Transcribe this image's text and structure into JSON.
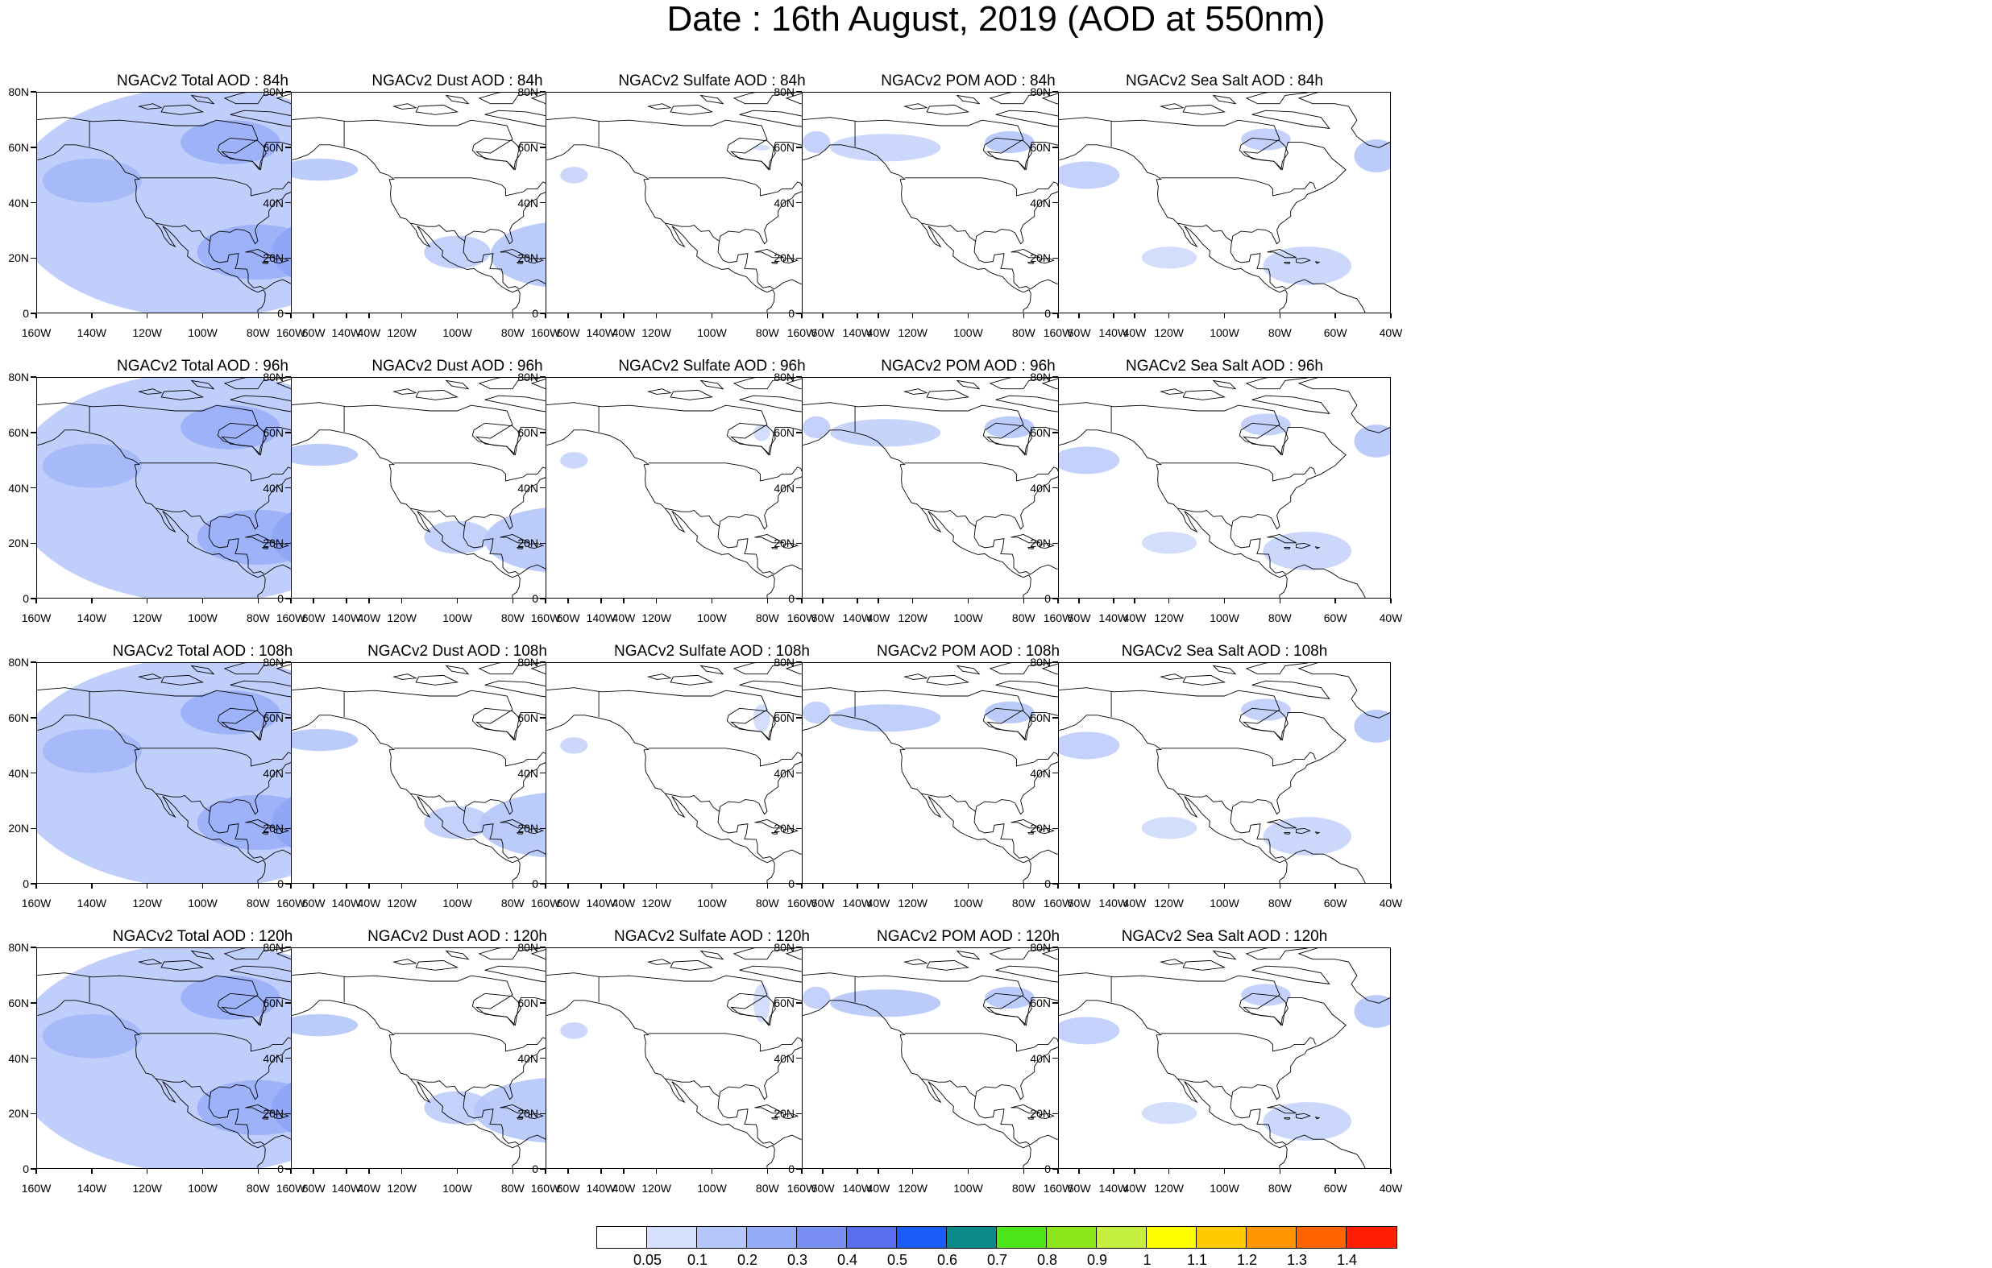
{
  "title": "Date : 16th August, 2019 (AOD at 550nm)",
  "y_tick_labels": [
    "80N",
    "60N",
    "40N",
    "20N",
    "0"
  ],
  "x_tick_labels": [
    "160W",
    "140W",
    "120W",
    "100W",
    "80W",
    "60W",
    "40W"
  ],
  "panels": [
    {
      "title": "NGACv2 Total AOD : 84h",
      "species": "total",
      "forecast_hour": 84
    },
    {
      "title": "NGACv2 Dust AOD : 84h",
      "species": "dust",
      "forecast_hour": 84
    },
    {
      "title": "NGACv2 Sulfate AOD : 84h",
      "species": "sulfate",
      "forecast_hour": 84
    },
    {
      "title": "NGACv2 POM AOD : 84h",
      "species": "pom",
      "forecast_hour": 84
    },
    {
      "title": "NGACv2 Sea Salt AOD : 84h",
      "species": "seasalt",
      "forecast_hour": 84
    },
    {
      "title": "NGACv2 Total AOD : 96h",
      "species": "total",
      "forecast_hour": 96
    },
    {
      "title": "NGACv2 Dust AOD : 96h",
      "species": "dust",
      "forecast_hour": 96
    },
    {
      "title": "NGACv2 Sulfate AOD : 96h",
      "species": "sulfate",
      "forecast_hour": 96
    },
    {
      "title": "NGACv2 POM AOD : 96h",
      "species": "pom",
      "forecast_hour": 96
    },
    {
      "title": "NGACv2 Sea Salt AOD : 96h",
      "species": "seasalt",
      "forecast_hour": 96
    },
    {
      "title": "NGACv2 Total AOD : 108h",
      "species": "total",
      "forecast_hour": 108
    },
    {
      "title": "NGACv2 Dust AOD : 108h",
      "species": "dust",
      "forecast_hour": 108
    },
    {
      "title": "NGACv2 Sulfate AOD : 108h",
      "species": "sulfate",
      "forecast_hour": 108
    },
    {
      "title": "NGACv2 POM AOD : 108h",
      "species": "pom",
      "forecast_hour": 108
    },
    {
      "title": "NGACv2 Sea Salt AOD : 108h",
      "species": "seasalt",
      "forecast_hour": 108
    },
    {
      "title": "NGACv2 Total AOD : 120h",
      "species": "total",
      "forecast_hour": 120
    },
    {
      "title": "NGACv2 Dust AOD : 120h",
      "species": "dust",
      "forecast_hour": 120
    },
    {
      "title": "NGACv2 Sulfate AOD : 120h",
      "species": "sulfate",
      "forecast_hour": 120
    },
    {
      "title": "NGACv2 POM AOD : 120h",
      "species": "pom",
      "forecast_hour": 120
    },
    {
      "title": "NGACv2 Sea Salt  AOD : 120h",
      "species": "seasalt",
      "forecast_hour": 120
    }
  ],
  "colorbar": {
    "levels": [
      "0.05",
      "0.1",
      "0.2",
      "0.3",
      "0.4",
      "0.5",
      "0.6",
      "0.7",
      "0.8",
      "0.9",
      "1",
      "1.1",
      "1.2",
      "1.3",
      "1.4"
    ],
    "colors": [
      "#ffffff",
      "#d6e0fc",
      "#b5c6fa",
      "#94abf8",
      "#7a8ff4",
      "#5a6ff0",
      "#1a5cf5",
      "#0a8a8a",
      "#4ce61a",
      "#8ce61a",
      "#c6f040",
      "#ffff00",
      "#ffc800",
      "#ff9600",
      "#ff6400",
      "#ff1e00"
    ]
  }
}
